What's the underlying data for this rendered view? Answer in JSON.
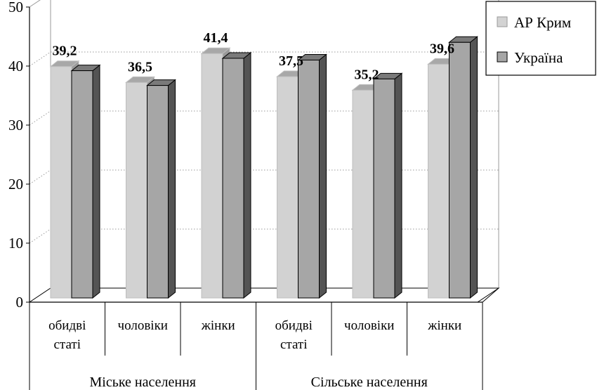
{
  "chart_data": {
    "type": "bar",
    "title": "",
    "xlabel": "",
    "ylabel": "",
    "ylim": [
      0,
      50
    ],
    "y_ticks": [
      "0",
      "10",
      "20",
      "30",
      "40",
      "50"
    ],
    "groups": [
      {
        "label": "Міське населення",
        "categories": [
          "обидві статі",
          "чоловіки",
          "жінки"
        ]
      },
      {
        "label": "Сільське населення",
        "categories": [
          "обидві статі",
          "чоловіки",
          "жінки"
        ]
      }
    ],
    "categories": [
      [
        "обидві",
        "статі"
      ],
      [
        "чоловіки"
      ],
      [
        "жінки"
      ],
      [
        "обидві",
        "статі"
      ],
      [
        "чоловіки"
      ],
      [
        "жінки"
      ]
    ],
    "series": [
      {
        "name": "АР Крим",
        "values": [
          39.2,
          36.5,
          41.4,
          37.5,
          35.2,
          39.6
        ],
        "data_labels": [
          "39,2",
          "36,5",
          "41,4",
          "37,5",
          "35,2",
          "39,6"
        ],
        "color": "#d3d3d3"
      },
      {
        "name": "Україна",
        "values": [
          38.5,
          36.0,
          40.6,
          40.3,
          37.1,
          43.3
        ],
        "color": "#a6a6a6"
      }
    ],
    "grid": "dotted",
    "legend_position": "top-right"
  }
}
